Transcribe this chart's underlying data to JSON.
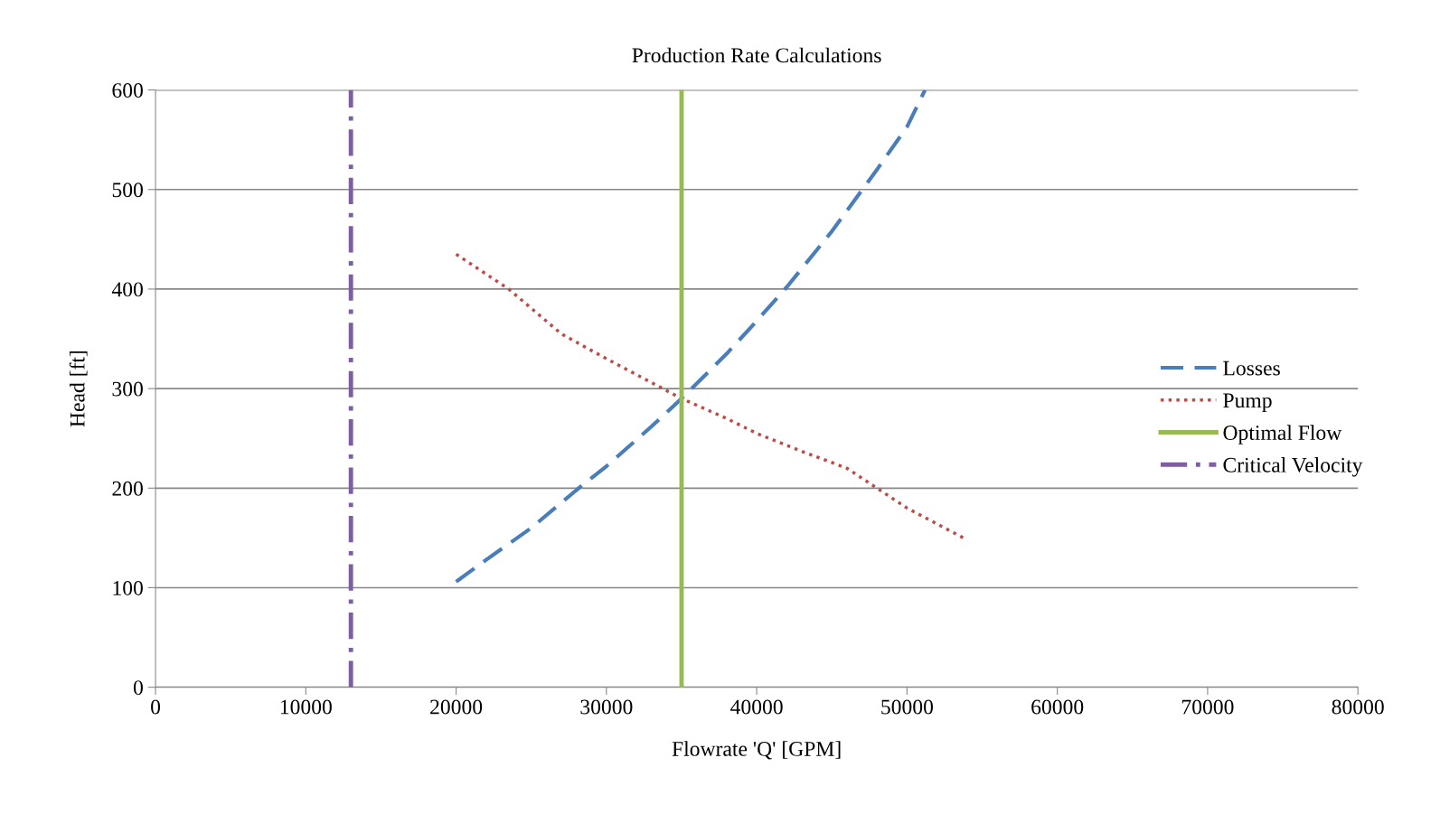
{
  "chart_data": {
    "type": "line",
    "title": "Production Rate Calculations",
    "xlabel": "Flowrate 'Q' [GPM]",
    "ylabel": "Head [ft]",
    "xlim": [
      0,
      80000
    ],
    "xticks": [
      0,
      10000,
      20000,
      30000,
      40000,
      50000,
      60000,
      70000,
      80000
    ],
    "ylim": [
      0,
      600
    ],
    "yticks": [
      0,
      100,
      200,
      300,
      400,
      500,
      600
    ],
    "grid": "y",
    "legend": "right",
    "series": [
      {
        "name": "Losses",
        "color": "#4a7ebb",
        "line_style": "dashed",
        "x": [
          20000,
          22000,
          25000,
          28000,
          30000,
          33000,
          35000,
          38000,
          40000,
          42000,
          45000,
          48000,
          50000,
          51200
        ],
        "values": [
          106,
          128,
          160,
          198,
          222,
          262,
          290,
          335,
          368,
          402,
          458,
          520,
          563,
          600
        ]
      },
      {
        "name": "Pump",
        "color": "#be4b48",
        "line_style": "dotted",
        "x": [
          20000,
          23500,
          27000,
          30000,
          35000,
          38000,
          40000,
          43000,
          46000,
          48000,
          50000,
          54000
        ],
        "values": [
          435,
          400,
          355,
          330,
          290,
          270,
          255,
          237,
          220,
          200,
          180,
          148
        ]
      },
      {
        "name": "Optimal Flow",
        "color": "#98b954",
        "line_style": "solid",
        "x": [
          35000,
          35000
        ],
        "values": [
          0,
          600
        ]
      },
      {
        "name": "Critical Velocity",
        "color": "#7d5fa0",
        "line_style": "dashdot",
        "x": [
          13000,
          13000
        ],
        "values": [
          0,
          600
        ]
      }
    ]
  }
}
